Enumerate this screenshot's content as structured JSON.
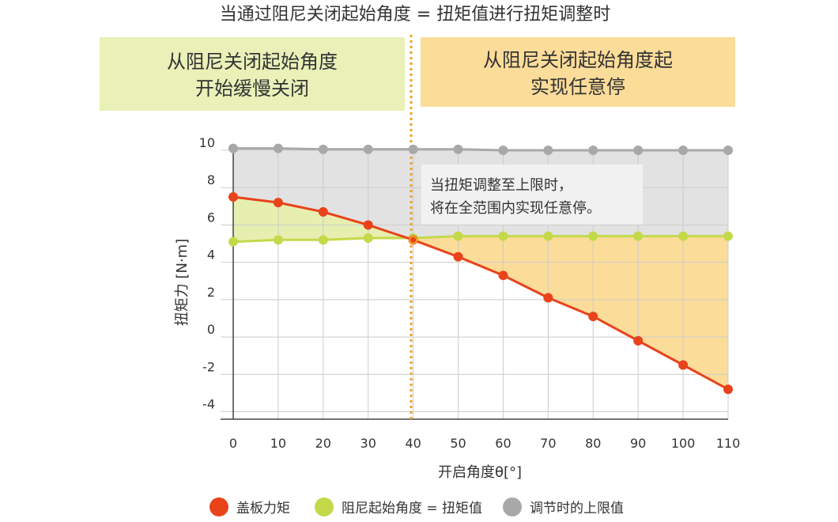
{
  "title": "当通过阻尼关闭起始角度 = 扭矩值进行扭矩调整时",
  "zones": [
    {
      "line1": "从阻尼关闭起始角度",
      "line2": "开始缓慢关闭",
      "color": "#e9f0b8"
    },
    {
      "line1": "从阻尼关闭起始角度起",
      "line2": "实现任意停",
      "color": "#fbdc99"
    }
  ],
  "annotation": {
    "line1": "当扭矩调整至上限时，",
    "line2": "将在全范围内实现任意停。"
  },
  "colors": {
    "lid": "#e8431a",
    "damper": "#c4d94a",
    "limit": "#a8a8a8",
    "limit_fill": "#e2e2e2",
    "green_fill": "#e6efb0",
    "orange_fill": "#fbdc99",
    "marker_line": "#f0a020",
    "grid": "#cccccc"
  },
  "chart_data": {
    "type": "line",
    "xlabel": "开启角度θ[°]",
    "ylabel": "扭矩力 [N·m]",
    "xlim": [
      0,
      110
    ],
    "ylim": [
      -4.4,
      10
    ],
    "x_ticks": [
      "0",
      "10",
      "20",
      "30",
      "40",
      "50",
      "60",
      "70",
      "80",
      "90",
      "100",
      "110"
    ],
    "y_ticks": [
      "10",
      "8",
      "6",
      "4",
      "2",
      "0",
      "-2",
      "-4"
    ],
    "x": [
      0,
      10,
      20,
      30,
      40,
      50,
      60,
      70,
      80,
      90,
      100,
      110
    ],
    "series": [
      {
        "name": "盖板力矩",
        "color": "#e8431a",
        "values": [
          7.5,
          7.2,
          6.7,
          6.0,
          5.2,
          4.3,
          3.3,
          2.1,
          1.1,
          -0.2,
          -1.5,
          -2.8
        ]
      },
      {
        "name": "阻尼起始角度 = 扭矩值",
        "color": "#c4d94a",
        "values": [
          5.1,
          5.2,
          5.2,
          5.3,
          5.3,
          5.4,
          5.4,
          5.4,
          5.4,
          5.4,
          5.4,
          5.4
        ]
      },
      {
        "name": "调节时的上限值",
        "color": "#a8a8a8",
        "values": [
          10.1,
          10.1,
          10.05,
          10.05,
          10.05,
          10.05,
          10.0,
          10.0,
          10.0,
          10.0,
          10.0,
          10.0
        ]
      }
    ],
    "crossover_x": 40,
    "grid": true,
    "legend_position": "bottom"
  }
}
